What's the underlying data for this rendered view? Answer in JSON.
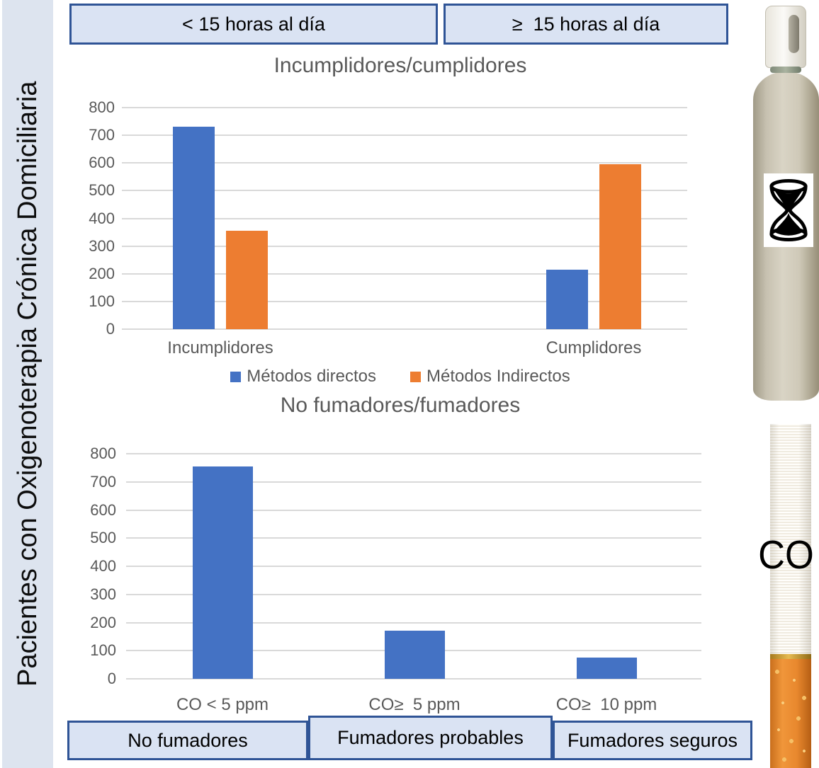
{
  "sidebar": {
    "title": "Pacientes con Oxigenoterapia Crónica Domiciliaria"
  },
  "header": {
    "boxes": [
      "< 15 horas al día",
      "≥  15 horas al día"
    ]
  },
  "chart_data": [
    {
      "type": "bar",
      "title": "Incumplidores/cumplidores",
      "categories": [
        "Incumplidores",
        "Cumplidores"
      ],
      "series": [
        {
          "name": "Métodos directos",
          "color": "#4472C4",
          "values": [
            730,
            215
          ]
        },
        {
          "name": "Métodos Indirectos",
          "color": "#ED7D31",
          "values": [
            355,
            595
          ]
        }
      ],
      "xlabel": "",
      "ylabel": "",
      "ylim": [
        0,
        800
      ],
      "ytick_step": 100,
      "grid": true,
      "legend_position": "bottom"
    },
    {
      "type": "bar",
      "title": "No fumadores/fumadores",
      "categories": [
        "CO < 5 ppm",
        "CO≥  5 ppm",
        "CO≥  10 ppm"
      ],
      "series": [
        {
          "name": "",
          "color": "#4472C4",
          "values": [
            755,
            170,
            75
          ]
        }
      ],
      "xlabel": "",
      "ylabel": "",
      "ylim": [
        0,
        800
      ],
      "ytick_step": 100,
      "grid": true,
      "legend_position": "none"
    }
  ],
  "footer": {
    "boxes": [
      "No fumadores",
      "Fumadores probables",
      "Fumadores seguros"
    ]
  },
  "right_panel": {
    "cylinder_icon": "oxygen-cylinder",
    "hourglass_icon": "hourglass",
    "cigarette_icon": "cigarette",
    "co_label": "CO"
  },
  "colors": {
    "series_blue": "#4472C4",
    "series_orange": "#ED7D31",
    "box_fill": "#dae3f3",
    "box_border": "#2f5496",
    "sidebar_bg": "#dde4ef",
    "title_gray": "#595959",
    "gridline_gray": "#d9d9d9"
  }
}
